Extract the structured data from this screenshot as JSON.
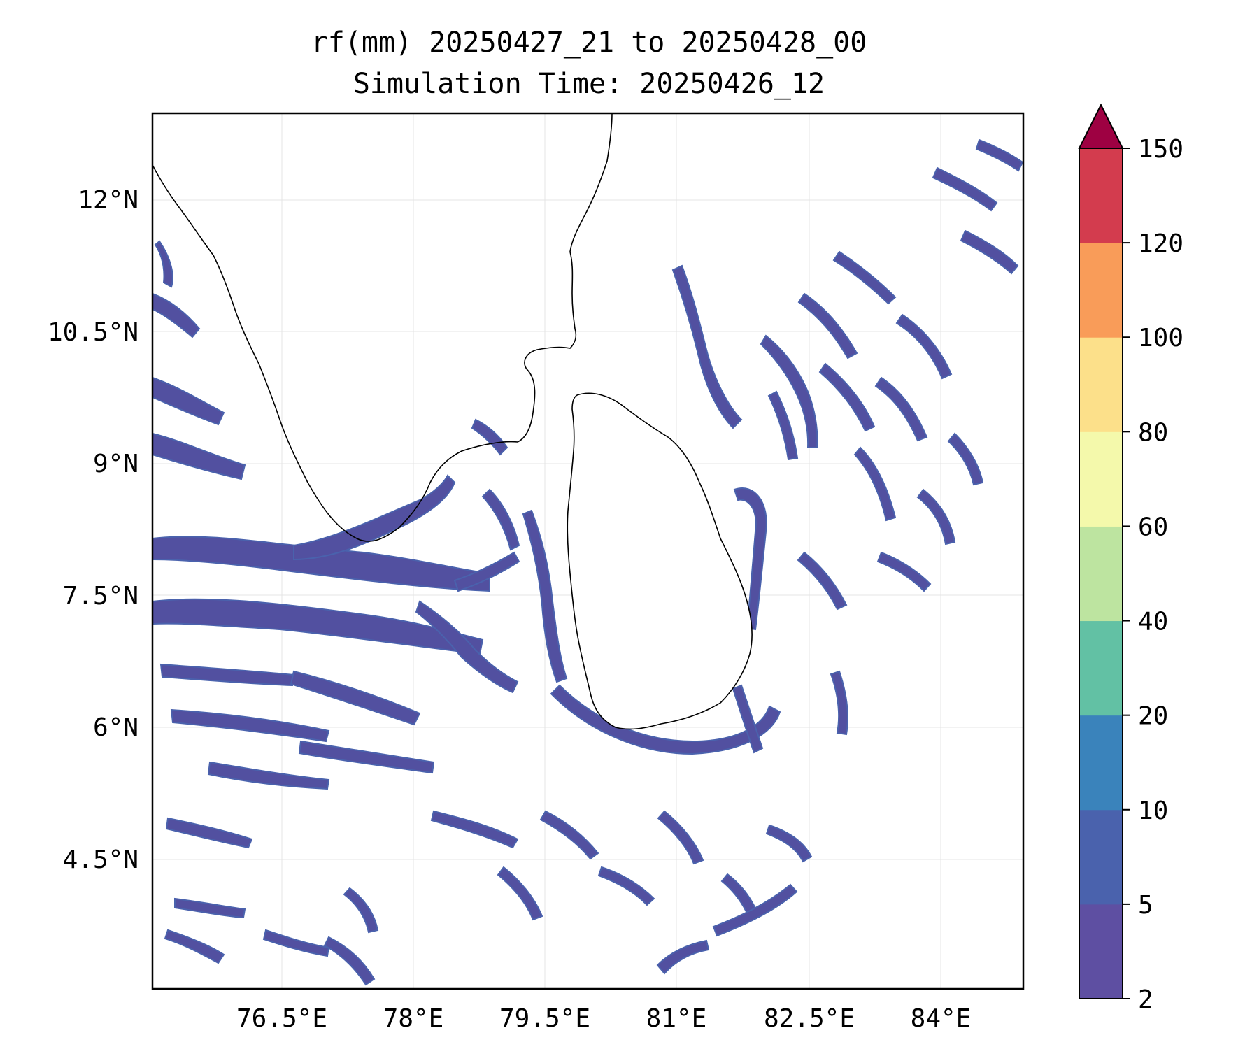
{
  "title": {
    "line1": "rf(mm) 20250427_21 to 20250428_00",
    "line2": "Simulation Time: 20250426_12"
  },
  "map": {
    "lat_ticks": [
      "12°N",
      "10.5°N",
      "9°N",
      "7.5°N",
      "6°N",
      "4.5°N"
    ],
    "lon_ticks": [
      "76.5°E",
      "78°E",
      "79.5°E",
      "81°E",
      "82.5°E",
      "84°E"
    ],
    "gridlines": true,
    "coastline_color": "#000000"
  },
  "colorbar": {
    "labels": [
      "2",
      "5",
      "10",
      "20",
      "40",
      "60",
      "80",
      "100",
      "120",
      "150"
    ],
    "colors": [
      "#5e4fa2",
      "#4a62ad",
      "#3a83bb",
      "#62c1a4",
      "#bde4a0",
      "#f4f9ab",
      "#fce08a",
      "#f99c59",
      "#d33c4e"
    ],
    "extend_color": "#9e0142",
    "extend": "max"
  }
}
